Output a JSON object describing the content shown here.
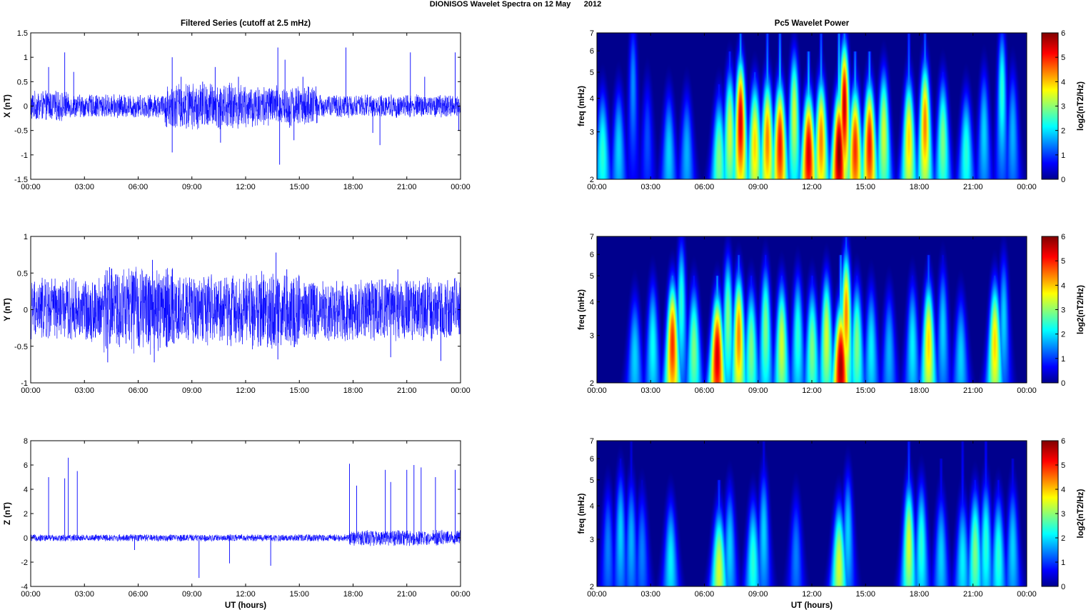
{
  "figure": {
    "title": "DIONISOS Wavelet Spectra on 12 May      2012",
    "left_title": "Filtered Series (cutoff at 2.5 mHz)",
    "right_title": "Pc5 Wavelet Power"
  },
  "colors": {
    "trace": "#0000ff",
    "map_low": "#00008f",
    "map_high": "#800000",
    "axes": "#000000"
  },
  "chart_data": [
    {
      "type": "line",
      "component": "X",
      "ylabel": "X (nT)",
      "xlabel": "",
      "ylim": [
        -1.5,
        1.5
      ],
      "yticks": [
        "-1.5",
        "-1",
        "-0.5",
        "0",
        "0.5",
        "1",
        "1.5"
      ],
      "x_ticks": [
        "00:00",
        "03:00",
        "06:00",
        "09:00",
        "12:00",
        "15:00",
        "18:00",
        "21:00",
        "00:00"
      ],
      "x_range_hours": [
        0,
        24
      ],
      "noise_amplitude_nT": 0.1,
      "activity": [
        [
          0,
          2,
          0.13
        ],
        [
          2,
          7.5,
          0.1
        ],
        [
          7.5,
          12,
          0.2
        ],
        [
          12,
          16,
          0.18
        ],
        [
          16,
          24,
          0.1
        ]
      ],
      "spikes": [
        [
          1,
          0.8
        ],
        [
          1.9,
          1.1
        ],
        [
          2.4,
          0.7
        ],
        [
          7.9,
          1.0
        ],
        [
          7.9,
          -0.95
        ],
        [
          8.4,
          0.6
        ],
        [
          9.6,
          0.5
        ],
        [
          10.3,
          0.8
        ],
        [
          10.6,
          -0.75
        ],
        [
          11.6,
          0.6
        ],
        [
          13.8,
          1.2
        ],
        [
          13.9,
          -1.2
        ],
        [
          14.2,
          0.95
        ],
        [
          14.7,
          -0.7
        ],
        [
          15.2,
          0.6
        ],
        [
          17.6,
          1.2
        ],
        [
          19.1,
          -0.55
        ],
        [
          19.5,
          -0.8
        ],
        [
          21.2,
          1.1
        ],
        [
          22.0,
          0.6
        ],
        [
          23.7,
          1.1
        ],
        [
          23.9,
          -0.5
        ]
      ]
    },
    {
      "type": "line",
      "component": "Y",
      "ylabel": "Y (nT)",
      "xlabel": "",
      "ylim": [
        -1,
        1
      ],
      "yticks": [
        "-1",
        "-0.5",
        "0",
        "0.5",
        "1"
      ],
      "x_ticks": [
        "00:00",
        "03:00",
        "06:00",
        "09:00",
        "12:00",
        "15:00",
        "18:00",
        "21:00",
        "00:00"
      ],
      "x_range_hours": [
        0,
        24
      ],
      "noise_amplitude_nT": 0.15,
      "activity": [
        [
          0,
          4,
          0.18
        ],
        [
          4,
          8,
          0.25
        ],
        [
          8,
          12,
          0.2
        ],
        [
          12,
          15,
          0.22
        ],
        [
          15,
          24,
          0.18
        ]
      ],
      "spikes": [
        [
          4.3,
          -0.72
        ],
        [
          4.4,
          0.58
        ],
        [
          6.8,
          0.68
        ],
        [
          6.9,
          -0.72
        ],
        [
          7.9,
          0.55
        ],
        [
          13.7,
          0.78
        ],
        [
          13.8,
          -0.68
        ],
        [
          14.3,
          0.55
        ],
        [
          20.1,
          -0.65
        ],
        [
          20.5,
          0.55
        ],
        [
          22.9,
          -0.7
        ]
      ]
    },
    {
      "type": "line",
      "component": "Z",
      "ylabel": "Z (nT)",
      "xlabel": "UT (hours)",
      "ylim": [
        -4,
        8
      ],
      "yticks": [
        "-4",
        "-2",
        "0",
        "2",
        "4",
        "6",
        "8"
      ],
      "x_ticks": [
        "00:00",
        "03:00",
        "06:00",
        "09:00",
        "12:00",
        "15:00",
        "18:00",
        "21:00",
        "00:00"
      ],
      "x_range_hours": [
        0,
        24
      ],
      "noise_amplitude_nT": 0.1,
      "activity": [
        [
          0,
          17.8,
          0.12
        ],
        [
          17.8,
          24,
          0.28
        ]
      ],
      "spikes": [
        [
          1.0,
          5.0
        ],
        [
          1.9,
          4.9
        ],
        [
          2.1,
          6.6
        ],
        [
          2.6,
          5.5
        ],
        [
          5.8,
          -1.0
        ],
        [
          9.4,
          -3.3
        ],
        [
          11.1,
          -2.1
        ],
        [
          13.4,
          -2.3
        ],
        [
          17.8,
          6.1
        ],
        [
          18.2,
          4.3
        ],
        [
          19.8,
          5.6
        ],
        [
          20.1,
          4.6
        ],
        [
          21.0,
          5.6
        ],
        [
          21.4,
          6.0
        ],
        [
          21.8,
          5.8
        ],
        [
          22.6,
          5.0
        ],
        [
          23.7,
          5.6
        ]
      ]
    },
    {
      "type": "heatmap",
      "component": "X",
      "ylabel": "freq (mHz)",
      "xlabel": "",
      "yscale": "log",
      "ylim": [
        2,
        7
      ],
      "yticks": [
        "2",
        "3",
        "4",
        "5",
        "6",
        "7"
      ],
      "x_ticks": [
        "00:00",
        "03:00",
        "06:00",
        "09:00",
        "12:00",
        "15:00",
        "18:00",
        "21:00",
        "00:00"
      ],
      "x_range_hours": [
        0,
        24
      ],
      "colorbar": {
        "label": "log2(nT2/Hz)",
        "range": [
          0,
          6
        ],
        "ticks": [
          "0",
          "1",
          "2",
          "3",
          "4",
          "5",
          "6"
        ]
      },
      "events": [
        [
          0.3,
          2.5,
          2.5,
          3
        ],
        [
          1.2,
          2.6,
          2.0,
          3.2
        ],
        [
          2.0,
          4.5,
          1.6,
          5
        ],
        [
          2.8,
          2.8,
          1.2,
          3.5
        ],
        [
          4.0,
          2.5,
          2.0,
          3
        ],
        [
          5.0,
          2.5,
          1.8,
          3.5
        ],
        [
          6.8,
          2.4,
          3.0,
          4.5
        ],
        [
          7.4,
          3.0,
          3.5,
          6
        ],
        [
          8.0,
          3.3,
          5.5,
          7
        ],
        [
          8.8,
          2.7,
          4.0,
          5
        ],
        [
          9.5,
          2.8,
          4.5,
          7
        ],
        [
          10.2,
          2.7,
          5.2,
          7
        ],
        [
          11.0,
          3.5,
          3.5,
          6
        ],
        [
          11.8,
          2.5,
          5.5,
          6
        ],
        [
          12.5,
          2.8,
          4.5,
          7
        ],
        [
          13.5,
          2.5,
          6.0,
          7
        ],
        [
          13.8,
          3.8,
          5.6,
          7
        ],
        [
          14.4,
          2.6,
          5.0,
          6
        ],
        [
          15.2,
          2.7,
          5.2,
          6
        ],
        [
          16.0,
          3.0,
          3.5,
          5
        ],
        [
          17.4,
          2.8,
          4.0,
          7
        ],
        [
          18.3,
          3.2,
          4.5,
          7
        ],
        [
          19.3,
          2.8,
          3.0,
          5
        ],
        [
          20.6,
          2.5,
          2.5,
          4
        ],
        [
          21.6,
          3.0,
          2.0,
          5
        ],
        [
          22.6,
          4.3,
          2.5,
          7
        ],
        [
          23.2,
          3.0,
          1.8,
          4
        ]
      ]
    },
    {
      "type": "heatmap",
      "component": "Y",
      "ylabel": "freq (mHz)",
      "xlabel": "",
      "yscale": "log",
      "ylim": [
        2,
        7
      ],
      "yticks": [
        "2",
        "3",
        "4",
        "5",
        "6",
        "7"
      ],
      "x_ticks": [
        "00:00",
        "03:00",
        "06:00",
        "09:00",
        "12:00",
        "15:00",
        "18:00",
        "21:00",
        "00:00"
      ],
      "x_range_hours": [
        0,
        24
      ],
      "colorbar": {
        "label": "log2(nT2/Hz)",
        "range": [
          0,
          6
        ],
        "ticks": [
          "0",
          "1",
          "2",
          "3",
          "4",
          "5",
          "6"
        ]
      },
      "events": [
        [
          2.1,
          2.5,
          2.0,
          3
        ],
        [
          3.1,
          2.8,
          2.3,
          4
        ],
        [
          4.2,
          2.8,
          5.0,
          5
        ],
        [
          4.7,
          4.0,
          2.5,
          6
        ],
        [
          5.4,
          2.7,
          3.0,
          5
        ],
        [
          6.7,
          2.5,
          5.5,
          5
        ],
        [
          7.3,
          3.5,
          3.0,
          6
        ],
        [
          7.9,
          3.0,
          4.5,
          6
        ],
        [
          8.6,
          2.7,
          3.0,
          5
        ],
        [
          9.4,
          3.2,
          3.0,
          6
        ],
        [
          10.3,
          2.8,
          3.5,
          5
        ],
        [
          11.2,
          3.0,
          2.5,
          5
        ],
        [
          12.0,
          2.7,
          3.0,
          5
        ],
        [
          12.8,
          3.0,
          3.5,
          5
        ],
        [
          13.6,
          2.3,
          5.8,
          6
        ],
        [
          13.9,
          3.6,
          4.5,
          7
        ],
        [
          14.5,
          2.8,
          3.0,
          5
        ],
        [
          15.3,
          2.7,
          2.2,
          4
        ],
        [
          16.3,
          2.6,
          1.8,
          4
        ],
        [
          17.6,
          2.8,
          2.2,
          5
        ],
        [
          18.5,
          2.8,
          4.0,
          6
        ],
        [
          19.3,
          3.2,
          2.0,
          6
        ],
        [
          20.3,
          2.5,
          2.0,
          4
        ],
        [
          22.2,
          2.8,
          4.0,
          5
        ],
        [
          22.7,
          3.5,
          2.0,
          5
        ]
      ]
    },
    {
      "type": "heatmap",
      "component": "Z",
      "ylabel": "freq (mHz)",
      "xlabel": "UT (hours)",
      "yscale": "log",
      "ylim": [
        2,
        7
      ],
      "yticks": [
        "2",
        "3",
        "4",
        "5",
        "6",
        "7"
      ],
      "x_ticks": [
        "00:00",
        "03:00",
        "06:00",
        "09:00",
        "12:00",
        "15:00",
        "18:00",
        "21:00",
        "00:00"
      ],
      "x_range_hours": [
        0,
        24
      ],
      "colorbar": {
        "label": "log2(nT2/Hz)",
        "range": [
          0,
          6
        ],
        "ticks": [
          "0",
          "1",
          "2",
          "3",
          "4",
          "5",
          "6"
        ]
      },
      "events": [
        [
          0.6,
          2.8,
          1.5,
          4
        ],
        [
          1.3,
          3.2,
          2.0,
          6
        ],
        [
          1.9,
          3.0,
          1.8,
          7
        ],
        [
          2.5,
          2.7,
          1.5,
          5
        ],
        [
          4.1,
          2.5,
          2.2,
          4
        ],
        [
          6.8,
          2.3,
          3.5,
          5
        ],
        [
          7.4,
          2.8,
          2.0,
          5
        ],
        [
          8.7,
          2.5,
          2.5,
          4
        ],
        [
          9.3,
          3.2,
          2.0,
          7
        ],
        [
          11.1,
          2.6,
          1.5,
          4
        ],
        [
          13.5,
          2.4,
          3.5,
          4
        ],
        [
          14.0,
          3.2,
          2.0,
          5
        ],
        [
          17.4,
          2.9,
          3.5,
          7
        ],
        [
          18.1,
          2.9,
          2.5,
          5
        ],
        [
          19.2,
          2.6,
          2.0,
          6
        ],
        [
          20.4,
          2.5,
          2.2,
          7
        ],
        [
          21.1,
          2.7,
          3.0,
          5
        ],
        [
          21.7,
          2.9,
          2.5,
          7
        ],
        [
          22.4,
          2.6,
          2.5,
          5
        ],
        [
          23.2,
          2.8,
          2.0,
          6
        ]
      ]
    }
  ]
}
